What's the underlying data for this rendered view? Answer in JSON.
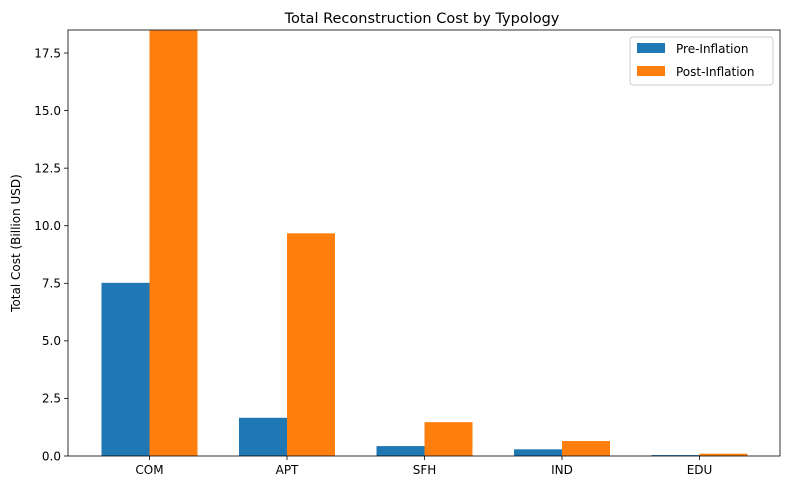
{
  "chart_data": {
    "type": "bar",
    "title": "Total Reconstruction Cost by Typology",
    "xlabel": "",
    "ylabel": "Total Cost (Billion USD)",
    "categories": [
      "COM",
      "APT",
      "SFH",
      "IND",
      "EDU"
    ],
    "series": [
      {
        "name": "Pre-Inflation",
        "color": "#1f77b4",
        "values": [
          7.52,
          1.66,
          0.43,
          0.29,
          0.04
        ]
      },
      {
        "name": "Post-Inflation",
        "color": "#ff7f0e",
        "values": [
          18.48,
          9.67,
          1.47,
          0.65,
          0.1
        ]
      }
    ],
    "ylim": [
      0,
      18.5
    ],
    "yticks": [
      "0.0",
      "2.5",
      "5.0",
      "7.5",
      "10.0",
      "12.5",
      "15.0",
      "17.5"
    ],
    "grid": false,
    "legend": "top-right"
  }
}
